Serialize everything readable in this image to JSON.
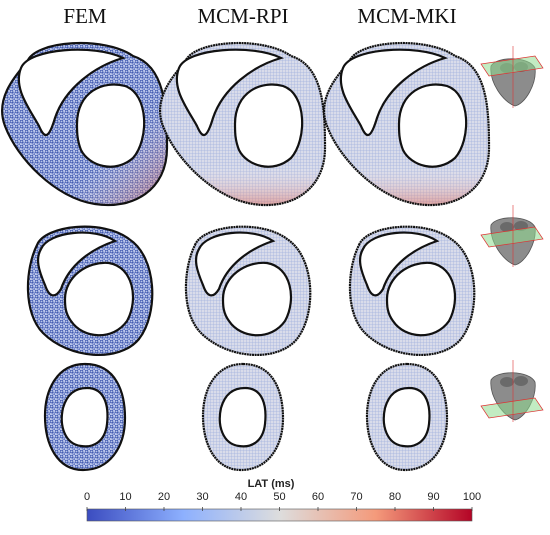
{
  "columns": [
    "FEM",
    "MCM-RPI",
    "MCM-MKI"
  ],
  "colorbar": {
    "title": "LAT (ms)",
    "ticks": [
      "0",
      "10",
      "20",
      "30",
      "40",
      "50",
      "60",
      "70",
      "80",
      "90",
      "100"
    ],
    "colormap": "cool-to-warm",
    "color_low": "#3b4cc0",
    "color_mid": "#dddddd",
    "color_high": "#b40426"
  },
  "rows": [
    {
      "slice": "basal",
      "inset_icon": "heart-slice-plane-basal-icon"
    },
    {
      "slice": "mid",
      "inset_icon": "heart-slice-plane-mid-icon"
    },
    {
      "slice": "apical",
      "inset_icon": "heart-slice-plane-apical-icon"
    }
  ]
}
